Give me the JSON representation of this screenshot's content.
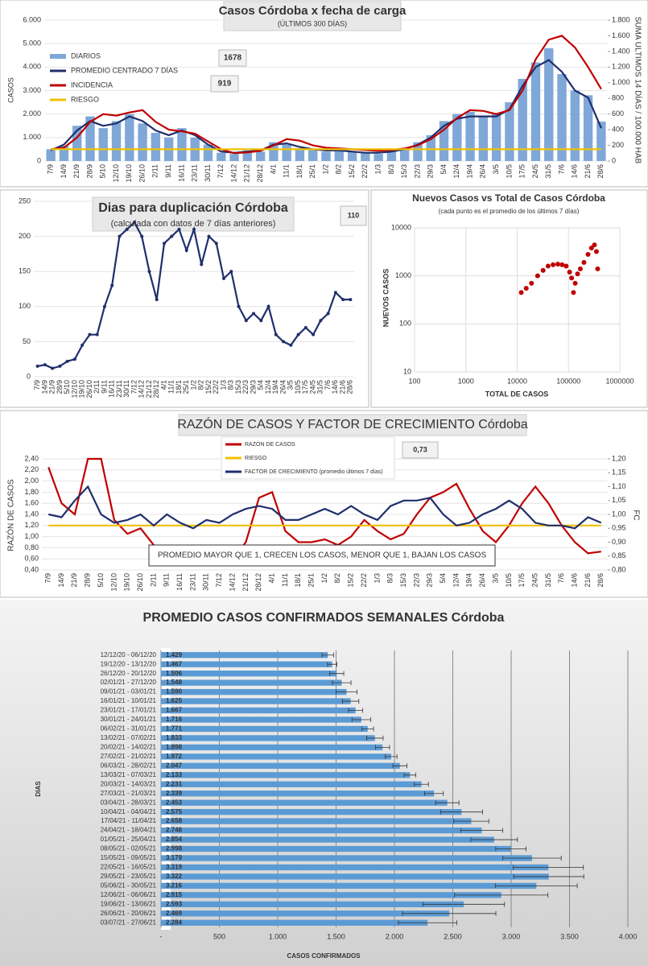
{
  "chart_data": [
    {
      "type": "combo",
      "title": "Casos  Córdoba  x fecha de carga",
      "subtitle": "(ÚLTIMOS 300 DÍAS)",
      "ylabel": "CASOS",
      "y2label": "SUMA  ULTIMOS 14 DÍAS / 100.000 HAB",
      "annotations": [
        "1678",
        "919"
      ],
      "categories": [
        "7/9",
        "14/9",
        "21/9",
        "28/9",
        "5/10",
        "12/10",
        "19/10",
        "26/10",
        "2/11",
        "9/11",
        "16/11",
        "23/11",
        "30/11",
        "7/12",
        "14/12",
        "21/12",
        "28/12",
        "4/1",
        "11/1",
        "18/1",
        "25/1",
        "1/2",
        "8/2",
        "15/2",
        "22/2",
        "1/3",
        "8/3",
        "15/3",
        "22/3",
        "29/3",
        "5/4",
        "12/4",
        "19/4",
        "26/4",
        "3/5",
        "10/5",
        "17/5",
        "24/5",
        "31/5",
        "7/6",
        "14/6",
        "21/6",
        "28/6"
      ],
      "ylim": [
        0,
        6000
      ],
      "yticks": [
        0,
        {
          "value": 1000,
          "label": "1.000"
        },
        {
          "value": 2000,
          "label": "2.000"
        },
        {
          "value": 3000,
          "label": "3.000"
        },
        {
          "value": 4000,
          "label": "4.000"
        },
        {
          "value": 5000,
          "label": "5.000"
        },
        {
          "value": 6000,
          "label": "6.000"
        }
      ],
      "y2lim": [
        0,
        1800
      ],
      "y2ticks": [
        0,
        200,
        400,
        600,
        800,
        {
          "value": 1000,
          "label": "1.000"
        },
        {
          "value": 1200,
          "label": "1.200"
        },
        {
          "value": 1400,
          "label": "1.400"
        },
        {
          "value": 1600,
          "label": "1.600"
        },
        {
          "value": 1800,
          "label": "1.800"
        }
      ],
      "series": [
        {
          "name": "DIARIOS",
          "type": "bar",
          "color": "#7fa8d8",
          "values": [
            500,
            650,
            1500,
            1900,
            1400,
            1700,
            2000,
            1600,
            1200,
            1000,
            1400,
            1000,
            700,
            350,
            300,
            450,
            400,
            800,
            700,
            550,
            500,
            400,
            450,
            380,
            330,
            300,
            420,
            550,
            800,
            1100,
            1700,
            2000,
            2100,
            1900,
            2000,
            2500,
            3500,
            4200,
            4800,
            3700,
            3000,
            2800,
            1678
          ]
        },
        {
          "name": "PROMEDIO CENTRADO 7 DÍAS",
          "type": "line",
          "color": "#1f2f6b",
          "values": [
            450,
            700,
            1300,
            1700,
            1500,
            1600,
            1900,
            1700,
            1300,
            1100,
            1300,
            1100,
            700,
            400,
            350,
            400,
            450,
            700,
            750,
            600,
            500,
            450,
            450,
            400,
            350,
            350,
            400,
            500,
            700,
            1000,
            1500,
            1800,
            1900,
            1900,
            1900,
            2200,
            3200,
            4000,
            4300,
            3800,
            3000,
            2700,
            1400
          ]
        },
        {
          "name": "INCIDENCIA",
          "type": "line",
          "axis": "y2",
          "color": "#c00000",
          "values": [
            150,
            170,
            300,
            500,
            600,
            580,
            620,
            650,
            500,
            400,
            380,
            350,
            250,
            150,
            100,
            110,
            130,
            200,
            280,
            260,
            200,
            170,
            160,
            150,
            140,
            130,
            140,
            160,
            200,
            280,
            400,
            550,
            650,
            640,
            600,
            650,
            900,
            1300,
            1550,
            1600,
            1450,
            1200,
            919
          ]
        },
        {
          "name": "RIESGO",
          "type": "line",
          "axis": "y2",
          "color": "#f0c000",
          "values": [
            150,
            150,
            150,
            150,
            150,
            150,
            150,
            150,
            150,
            150,
            150,
            150,
            150,
            150,
            150,
            150,
            150,
            150,
            150,
            150,
            150,
            150,
            150,
            150,
            150,
            150,
            150,
            150,
            150,
            150,
            150,
            150,
            150,
            150,
            150,
            150,
            150,
            150,
            150,
            150,
            150,
            150,
            150
          ]
        }
      ]
    },
    {
      "type": "line",
      "title": "Dias para duplicación Córdoba",
      "subtitle": "(calculada con datos de 7 días anteriores)",
      "annotations": [
        "110"
      ],
      "categories": [
        "7/9",
        "14/9",
        "21/9",
        "28/9",
        "5/10",
        "12/10",
        "19/10",
        "26/10",
        "2/11",
        "9/11",
        "16/11",
        "23/11",
        "30/11",
        "7/12",
        "14/12",
        "21/12",
        "28/12",
        "4/1",
        "11/1",
        "18/1",
        "25/1",
        "1/2",
        "8/2",
        "15/2",
        "22/2",
        "1/3",
        "8/3",
        "15/3",
        "22/3",
        "29/3",
        "5/4",
        "12/4",
        "19/4",
        "26/4",
        "3/5",
        "10/5",
        "17/5",
        "24/5",
        "31/5",
        "7/6",
        "14/6",
        "21/6",
        "28/6"
      ],
      "ylim": [
        0,
        250
      ],
      "yticks": [
        0,
        50,
        100,
        150,
        200,
        250
      ],
      "series": [
        {
          "name": "Dias para duplicación",
          "color": "#1f2f6b",
          "marker": true,
          "values": [
            15,
            17,
            12,
            15,
            22,
            25,
            45,
            60,
            60,
            100,
            130,
            200,
            210,
            220,
            200,
            150,
            110,
            190,
            200,
            210,
            180,
            210,
            160,
            200,
            190,
            140,
            150,
            100,
            80,
            90,
            80,
            100,
            60,
            50,
            45,
            60,
            70,
            60,
            80,
            90,
            120,
            110,
            110
          ]
        }
      ]
    },
    {
      "type": "scatter",
      "title": "Nuevos Casos vs Total de Casos Córdoba",
      "subtitle": "(cada punto es el promedio de los últimos 7 días)",
      "xlabel": "TOTAL DE CASOS",
      "ylabel": "NUEVOS CASOS",
      "log": true,
      "color": "#c00000",
      "xlim": [
        100,
        1000000
      ],
      "xticks": [
        100,
        1000,
        10000,
        100000,
        1000000
      ],
      "ylim": [
        10,
        10000
      ],
      "yticks": [
        10,
        100,
        1000,
        10000
      ],
      "x": [
        12000,
        15000,
        19000,
        25000,
        32000,
        40000,
        50000,
        62000,
        75000,
        90000,
        105000,
        115000,
        125000,
        135000,
        150000,
        170000,
        200000,
        240000,
        280000,
        320000,
        350000,
        370000
      ],
      "y": [
        450,
        550,
        700,
        1000,
        1300,
        1600,
        1700,
        1750,
        1700,
        1600,
        1200,
        900,
        450,
        700,
        1100,
        1400,
        1900,
        2800,
        3800,
        4400,
        3200,
        1400
      ]
    },
    {
      "type": "line",
      "title": "RAZÓN DE CASOS Y FACTOR DE CRECIMIENTO Córdoba",
      "ylabel": "RAZÓN DE CASOS",
      "y2label": "FC",
      "annotations": [
        "0,73",
        "PROMEDIO MAYOR QUE 1, CRECEN LOS CASOS, MENOR QUE 1, BAJAN LOS CASOS"
      ],
      "categories": [
        "7/9",
        "14/9",
        "21/9",
        "28/9",
        "5/10",
        "12/10",
        "19/10",
        "26/10",
        "2/11",
        "9/11",
        "16/11",
        "23/11",
        "30/11",
        "7/12",
        "14/12",
        "21/12",
        "28/12",
        "4/1",
        "11/1",
        "18/1",
        "25/1",
        "1/2",
        "8/2",
        "15/2",
        "22/2",
        "1/3",
        "8/3",
        "15/3",
        "22/3",
        "29/3",
        "5/4",
        "12/4",
        "19/4",
        "26/4",
        "3/5",
        "10/5",
        "17/5",
        "24/5",
        "31/5",
        "7/6",
        "14/6",
        "21/6",
        "28/6"
      ],
      "ylim": [
        0.4,
        2.4
      ],
      "yticks": [
        {
          "value": 0.4,
          "label": "0,40"
        },
        {
          "value": 0.6,
          "label": "0,60"
        },
        {
          "value": 0.8,
          "label": "0,80"
        },
        {
          "value": 1.0,
          "label": "1,00"
        },
        {
          "value": 1.2,
          "label": "1,20"
        },
        {
          "value": 1.4,
          "label": "1,40"
        },
        {
          "value": 1.6,
          "label": "1,60"
        },
        {
          "value": 1.8,
          "label": "1,80"
        },
        {
          "value": 2.0,
          "label": "2,00"
        },
        {
          "value": 2.2,
          "label": "2,20"
        },
        {
          "value": 2.4,
          "label": "2,40"
        }
      ],
      "y2lim": [
        0.8,
        1.2
      ],
      "y2ticks": [
        {
          "value": 0.8,
          "label": "0,80"
        },
        {
          "value": 0.85,
          "label": "0,85"
        },
        {
          "value": 0.9,
          "label": "0,90"
        },
        {
          "value": 0.95,
          "label": "0,95"
        },
        {
          "value": 1.0,
          "label": "1,00"
        },
        {
          "value": 1.05,
          "label": "1,05"
        },
        {
          "value": 1.1,
          "label": "1,10"
        },
        {
          "value": 1.15,
          "label": "1,15"
        },
        {
          "value": 1.2,
          "label": "1,20"
        }
      ],
      "series": [
        {
          "name": "RAZÓN DE CASOS",
          "color": "#c00000",
          "values": [
            2.25,
            1.6,
            1.4,
            2.4,
            2.4,
            1.3,
            1.05,
            1.15,
            0.85,
            0.7,
            0.75,
            0.65,
            0.6,
            0.55,
            0.6,
            0.9,
            1.7,
            1.8,
            1.1,
            0.9,
            0.9,
            0.95,
            0.85,
            1.0,
            1.3,
            1.1,
            0.95,
            1.05,
            1.4,
            1.7,
            1.8,
            1.95,
            1.5,
            1.1,
            0.9,
            1.2,
            1.6,
            1.9,
            1.6,
            1.2,
            0.9,
            0.7,
            0.73
          ]
        },
        {
          "name": "RIESGO",
          "color": "#f0c000",
          "values": [
            1.2,
            1.2,
            1.2,
            1.2,
            1.2,
            1.2,
            1.2,
            1.2,
            1.2,
            1.2,
            1.2,
            1.2,
            1.2,
            1.2,
            1.2,
            1.2,
            1.2,
            1.2,
            1.2,
            1.2,
            1.2,
            1.2,
            1.2,
            1.2,
            1.2,
            1.2,
            1.2,
            1.2,
            1.2,
            1.2,
            1.2,
            1.2,
            1.2,
            1.2,
            1.2,
            1.2,
            1.2,
            1.2,
            1.2,
            1.2,
            1.2,
            1.2,
            1.2
          ]
        },
        {
          "name": "FACTOR DE CRECIMIENTO (promedio últimos 7 días)",
          "axis": "y2",
          "color": "#1f2f6b",
          "values": [
            1.0,
            0.99,
            1.05,
            1.1,
            1.0,
            0.97,
            0.98,
            1.0,
            0.96,
            1.0,
            0.97,
            0.95,
            0.98,
            0.97,
            1.0,
            1.02,
            1.03,
            1.02,
            0.98,
            0.98,
            1.0,
            1.02,
            1.0,
            1.03,
            1.0,
            0.98,
            1.03,
            1.05,
            1.05,
            1.06,
            1.0,
            0.96,
            0.97,
            1.0,
            1.02,
            1.05,
            1.02,
            0.97,
            0.96,
            0.96,
            0.95,
            0.99,
            0.97
          ]
        }
      ]
    },
    {
      "type": "bar",
      "orientation": "horizontal",
      "title": "PROMEDIO CASOS CONFIRMADOS SEMANALES Córdoba",
      "xlabel": "CASOS CONFIRMADOS",
      "ylabel": "DIAS",
      "color": "#5b9bd5",
      "categories": [
        "12/12/20 - 06/12/20",
        "19/12/20 - 13/12/20",
        "26/12/20 - 20/12/20",
        "02/01/21 - 27/12/20",
        "09/01/21 - 03/01/21",
        "16/01/21 - 10/01/21",
        "23/01/21 - 17/01/21",
        "30/01/21 - 24/01/21",
        "06/02/21 - 31/01/21",
        "13/02/21 - 07/02/21",
        "20/02/21 - 14/02/21",
        "27/02/21 - 21/02/21",
        "06/03/21 - 28/02/21",
        "13/03/21 - 07/03/21",
        "20/03/21 - 14/03/21",
        "27/03/21 - 21/03/21",
        "03/04/21 - 28/03/21",
        "10/04/21 - 04/04/21",
        "17/04/21 - 11/04/21",
        "24/04/21 - 18/04/21",
        "01/05/21 - 25/04/21",
        "08/05/21 - 02/05/21",
        "15/05/21 - 09/05/21",
        "22/05/21 - 16/05/21",
        "29/05/21 - 23/05/21",
        "05/06/21 - 30/05/21",
        "12/06/21 - 06/06/21",
        "19/06/21 - 13/06/21",
        "26/06/21 - 20/06/21",
        "03/07/21 - 27/06/21"
      ],
      "values": [
        1429,
        1467,
        1506,
        1548,
        1590,
        1625,
        1667,
        1716,
        1771,
        1833,
        1898,
        1972,
        2047,
        2133,
        2231,
        2339,
        2453,
        2575,
        2658,
        2748,
        2854,
        2998,
        3179,
        3319,
        3322,
        3216,
        2915,
        2593,
        2469,
        2284
      ],
      "value_labels": [
        "1.429",
        "1.467",
        "1.506",
        "1.548",
        "1.590",
        "1.625",
        "1.667",
        "1.716",
        "1.771",
        "1.833",
        "1.898",
        "1.972",
        "2.047",
        "2.133",
        "2.231",
        "2.339",
        "2.453",
        "2.575",
        "2.658",
        "2.748",
        "2.854",
        "2.998",
        "3.179",
        "3.319",
        "3.322",
        "3.216",
        "2.915",
        "2.593",
        "2.469",
        "2.284"
      ],
      "errors": [
        50,
        40,
        60,
        80,
        90,
        70,
        60,
        80,
        50,
        70,
        60,
        50,
        60,
        50,
        60,
        80,
        100,
        180,
        150,
        180,
        200,
        130,
        250,
        300,
        300,
        350,
        400,
        350,
        400,
        250
      ],
      "xlim": [
        0,
        4000
      ],
      "xticks": [
        {
          "value": 0,
          "label": "-"
        },
        500,
        {
          "value": 1000,
          "label": "1.000"
        },
        {
          "value": 1500,
          "label": "1.500"
        },
        {
          "value": 2000,
          "label": "2.000"
        },
        {
          "value": 2500,
          "label": "2.500"
        },
        {
          "value": 3000,
          "label": "3.000"
        },
        {
          "value": 3500,
          "label": "3.500"
        },
        {
          "value": 4000,
          "label": "4.000"
        }
      ]
    }
  ]
}
